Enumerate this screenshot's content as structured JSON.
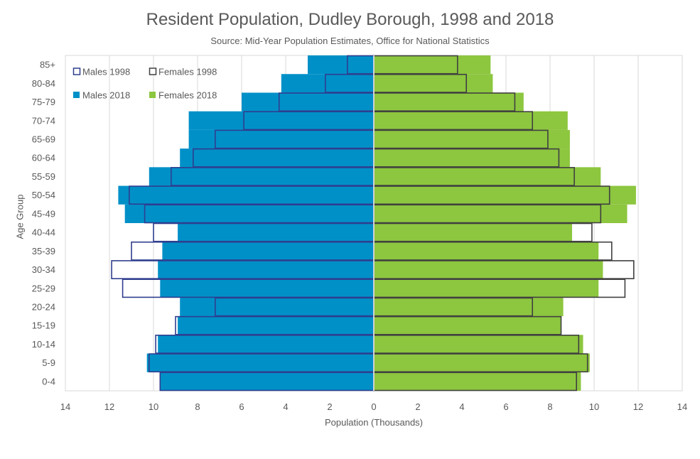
{
  "chart_data": {
    "type": "bar",
    "orientation": "horizontal",
    "title": "Resident Population, Dudley Borough, 1998 and 2018",
    "subtitle": "Source: Mid-Year Population Estimates, Office for National Statistics",
    "xlabel": "Population (Thousands)",
    "ylabel": "Age Group",
    "categories": [
      "0-4",
      "5-9",
      "10-14",
      "15-19",
      "20-24",
      "25-29",
      "30-34",
      "35-39",
      "40-44",
      "45-49",
      "50-54",
      "55-59",
      "60-64",
      "65-69",
      "70-74",
      "75-79",
      "80-84",
      "85+"
    ],
    "xlim": [
      -14,
      14
    ],
    "xticks": [
      "14",
      "12",
      "10",
      "8",
      "6",
      "4",
      "2",
      "0",
      "2",
      "4",
      "6",
      "8",
      "10",
      "12",
      "14"
    ],
    "grid": true,
    "legend_position": "top-left",
    "series": [
      {
        "name": "Males 2018",
        "side": "left",
        "style": "filled",
        "color": "#0090C8",
        "values": [
          9.7,
          10.3,
          9.8,
          8.9,
          8.8,
          9.7,
          9.8,
          9.6,
          8.9,
          11.3,
          11.6,
          10.2,
          8.8,
          8.4,
          8.4,
          6.0,
          4.2,
          3.0
        ]
      },
      {
        "name": "Females 2018",
        "side": "right",
        "style": "filled",
        "color": "#8DC63F",
        "values": [
          9.4,
          9.8,
          9.5,
          8.5,
          8.6,
          10.2,
          10.4,
          10.2,
          9.0,
          11.5,
          11.9,
          10.3,
          8.9,
          8.9,
          8.8,
          6.8,
          5.4,
          5.3
        ]
      },
      {
        "name": "Males 1998",
        "side": "left",
        "style": "outline",
        "color": "#2F3E8F",
        "values": [
          9.7,
          10.2,
          9.9,
          9.0,
          7.2,
          11.4,
          11.9,
          11.0,
          10.0,
          10.4,
          11.1,
          9.2,
          8.2,
          7.2,
          5.9,
          4.3,
          2.2,
          1.2
        ]
      },
      {
        "name": "Females 1998",
        "side": "right",
        "style": "outline",
        "color": "#404040",
        "values": [
          9.2,
          9.7,
          9.3,
          8.5,
          7.2,
          11.4,
          11.8,
          10.8,
          9.9,
          10.3,
          10.7,
          9.1,
          8.4,
          7.9,
          7.2,
          6.4,
          4.2,
          3.8
        ]
      }
    ]
  }
}
